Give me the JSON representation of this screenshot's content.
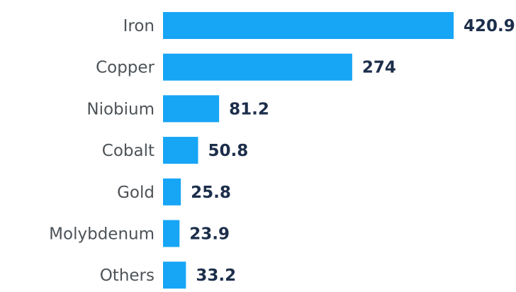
{
  "colors": {
    "bar": "#17a5f5",
    "category_text": "#4d5358",
    "value_text": "#1c2e4a"
  },
  "chart_data": {
    "type": "bar",
    "orientation": "horizontal",
    "categories": [
      "Iron",
      "Copper",
      "Niobium",
      "Cobalt",
      "Gold",
      "Molybdenum",
      "Others"
    ],
    "values": [
      420.9,
      274,
      81.2,
      50.8,
      25.8,
      23.9,
      33.2
    ],
    "value_labels": [
      "420.9",
      "274",
      "81.2",
      "50.8",
      "25.8",
      "23.9",
      "33.2"
    ],
    "title": "",
    "xlabel": "",
    "ylabel": "",
    "xlim": [
      0,
      420.9
    ],
    "grid": false,
    "legend": "none"
  }
}
